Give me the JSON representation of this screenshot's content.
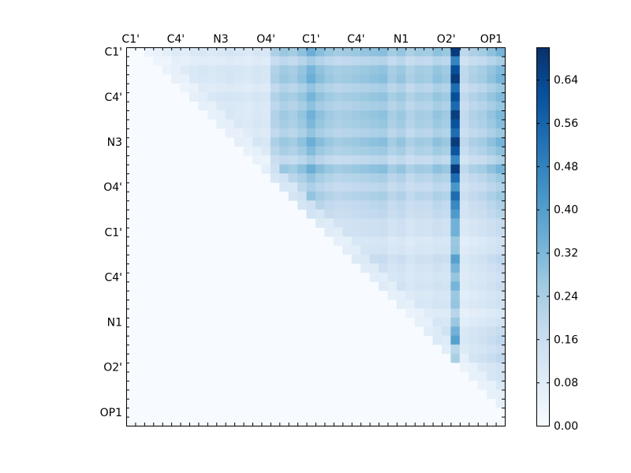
{
  "chart_data": {
    "type": "heatmap",
    "n": 42,
    "x_tick_labels": [
      "C1'",
      "C4'",
      "N3",
      "O4'",
      "C1'",
      "C4'",
      "N1",
      "O2'",
      "OP1"
    ],
    "y_tick_labels": [
      "C1'",
      "C4'",
      "N3",
      "O4'",
      "C1'",
      "C4'",
      "N1",
      "O2'",
      "OP1"
    ],
    "colorbar": {
      "range": [
        0.0,
        0.7
      ],
      "ticks": [
        "0.00",
        "0.08",
        "0.16",
        "0.24",
        "0.32",
        "0.40",
        "0.48",
        "0.56",
        "0.64"
      ],
      "colormap": "Blues"
    },
    "upper_triangle_only": true,
    "row_base": [
      0.05,
      0.04,
      0.06,
      0.05,
      0.04,
      0.06,
      0.05,
      0.04,
      0.05,
      0.04,
      0.05,
      0.04,
      0.03,
      0.05,
      0.04,
      0.05,
      0.04,
      0.03,
      0.04,
      0.03,
      0.03,
      0.02,
      0.03,
      0.02,
      0.02,
      0.03,
      0.02,
      0.02,
      0.03,
      0.02,
      0.02,
      0.03,
      0.02,
      0.02,
      0.02,
      0.02,
      0.02,
      0.02,
      0.02,
      0.02,
      0.02,
      0.02
    ],
    "col_base": [
      0.0,
      0.0,
      0.02,
      0.03,
      0.02,
      0.04,
      0.03,
      0.05,
      0.06,
      0.05,
      0.06,
      0.07,
      0.06,
      0.05,
      0.07,
      0.06,
      0.18,
      0.22,
      0.2,
      0.24,
      0.3,
      0.25,
      0.22,
      0.2,
      0.21,
      0.22,
      0.23,
      0.24,
      0.25,
      0.2,
      0.23,
      0.18,
      0.21,
      0.2,
      0.24,
      0.22,
      0.62,
      0.14,
      0.18,
      0.2,
      0.24,
      0.28
    ],
    "row_weight": [
      1.0,
      0.7,
      0.9,
      1.0,
      0.8,
      0.9,
      0.8,
      1.0,
      0.9,
      0.8,
      1.0,
      0.9,
      0.7,
      1.0,
      0.8,
      0.6,
      0.8,
      0.7,
      0.6,
      0.5,
      0.5,
      0.4,
      0.4,
      0.6,
      0.5,
      0.4,
      0.5,
      0.4,
      0.4,
      0.3,
      0.4,
      0.5,
      0.6,
      0.5,
      0.6,
      0.4,
      0.4,
      0.3,
      0.3,
      0.3,
      0.3,
      0.2
    ]
  }
}
